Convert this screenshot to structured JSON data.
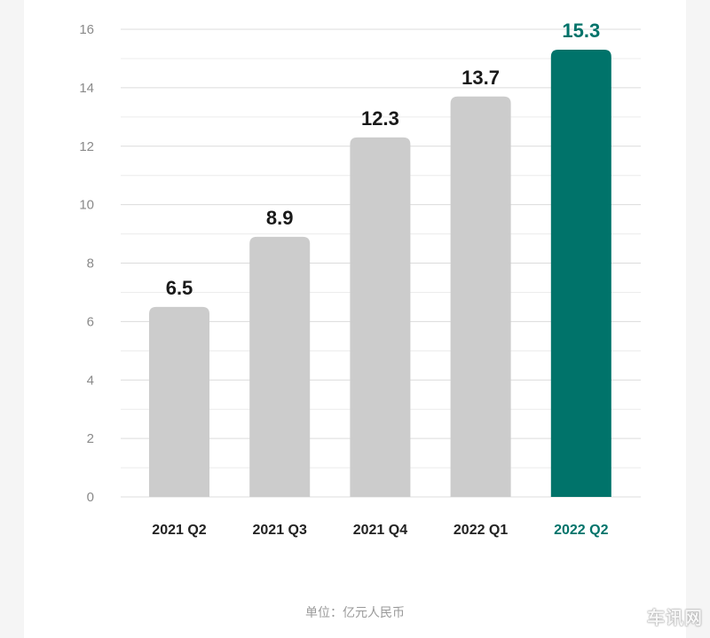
{
  "chart_data": {
    "type": "bar",
    "categories": [
      "2021 Q2",
      "2021 Q3",
      "2021 Q4",
      "2022 Q1",
      "2022 Q2"
    ],
    "values": [
      6.5,
      8.9,
      12.3,
      13.7,
      15.3
    ],
    "value_labels": [
      "6.5",
      "8.9",
      "12.3",
      "13.7",
      "15.3"
    ],
    "ylim": [
      0,
      16
    ],
    "yticks": [
      0,
      2,
      4,
      6,
      8,
      10,
      12,
      14,
      16
    ],
    "grid": true,
    "bar_color": "#cccccc",
    "highlight_index": 4,
    "highlight_color": "#00736a",
    "unit_label": "单位：亿元人民币"
  },
  "watermark": "车讯网"
}
